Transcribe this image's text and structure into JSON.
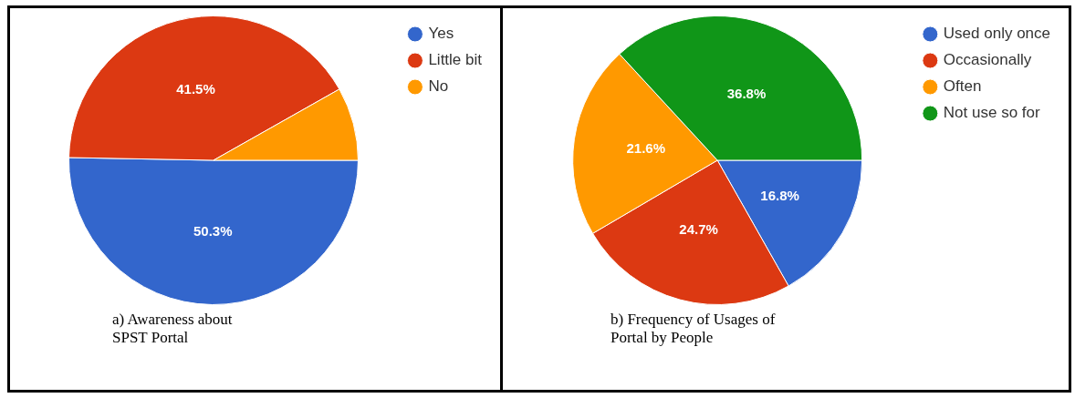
{
  "chart_data": [
    {
      "type": "pie",
      "title": "a) Awareness about SPST Portal",
      "categories": [
        "Yes",
        "Little bit",
        "No"
      ],
      "values": [
        50.3,
        41.5,
        8.2
      ],
      "colors": [
        "#3366cc",
        "#dc3912",
        "#ff9900"
      ],
      "value_labels": [
        "50.3%",
        "41.5%",
        null
      ],
      "legend": "right"
    },
    {
      "type": "pie",
      "title": "b) Frequency of Usages of Portal by People",
      "categories": [
        "Used only once",
        "Occasionally",
        "Often",
        "Not use so for"
      ],
      "values": [
        16.8,
        24.7,
        21.6,
        36.8
      ],
      "colors": [
        "#3366cc",
        "#dc3912",
        "#ff9900",
        "#109618"
      ],
      "value_labels": [
        "16.8%",
        "24.7%",
        "21.6%",
        "36.8%"
      ],
      "legend": "right"
    }
  ]
}
